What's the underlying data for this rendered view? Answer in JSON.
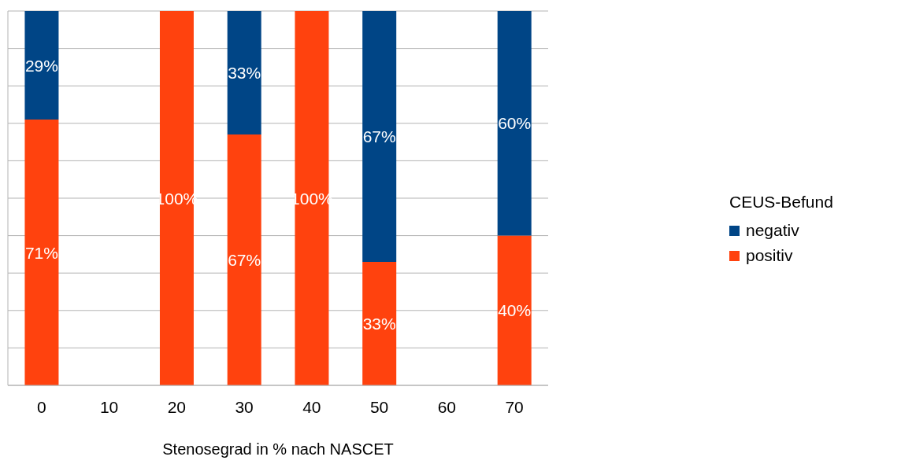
{
  "chart_data": {
    "type": "bar",
    "stacked": true,
    "xlabel": "Stenosegrad in % nach NASCET",
    "legend_title": "CEUS-Befund",
    "categories": [
      "0",
      "10",
      "20",
      "30",
      "40",
      "50",
      "60",
      "70"
    ],
    "series": [
      {
        "name": "positiv",
        "color": "#ff420e",
        "values": [
          71,
          null,
          100,
          67,
          100,
          33,
          null,
          40
        ],
        "value_labels": [
          "71%",
          null,
          "100%",
          "67%",
          "100%",
          "33%",
          null,
          "40%"
        ]
      },
      {
        "name": "negativ",
        "color": "#004586",
        "values": [
          29,
          null,
          null,
          33,
          null,
          67,
          null,
          60
        ],
        "value_labels": [
          "29%",
          null,
          null,
          "33%",
          null,
          "67%",
          null,
          "60%"
        ]
      }
    ],
    "ylim": [
      0,
      100
    ],
    "yticks": [
      {
        "value": 0,
        "label": null
      },
      {
        "value": 10,
        "label": null
      },
      {
        "value": 20,
        "label": null
      },
      {
        "value": 30,
        "label": null
      },
      {
        "value": 40,
        "label": null
      },
      {
        "value": 50,
        "label": null
      },
      {
        "value": 60,
        "label": null
      },
      {
        "value": 70,
        "label": null
      },
      {
        "value": 80,
        "label": null
      },
      {
        "value": 90,
        "label": null
      },
      {
        "value": 100,
        "label": null
      }
    ],
    "grid": "y",
    "legend": "right",
    "tick_labels": "x"
  }
}
